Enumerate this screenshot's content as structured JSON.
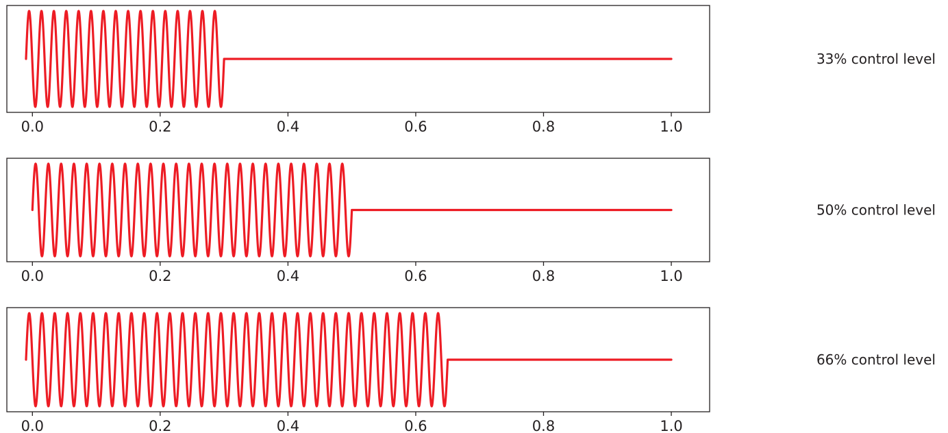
{
  "chart_data": [
    {
      "type": "line",
      "label": "33% control level",
      "control_fraction": 0.33,
      "cutoff_x": 0.3,
      "cycles": 16,
      "xlim": [
        -0.04,
        1.06
      ],
      "xticks": [
        0.0,
        0.2,
        0.4,
        0.6,
        0.8,
        1.0
      ],
      "xtick_labels": [
        "0.0",
        "0.2",
        "0.4",
        "0.6",
        "0.8",
        "1.0"
      ],
      "series": [
        {
          "color": "#ed1c24",
          "segments": [
            {
              "form": "sine",
              "x_start": -0.01,
              "x_end": 0.3,
              "cycles": 16,
              "amplitude": 1.0
            },
            {
              "form": "flat",
              "x_start": 0.3,
              "x_end": 1.0,
              "value": 0.0
            }
          ]
        }
      ]
    },
    {
      "type": "line",
      "label": "50% control level",
      "control_fraction": 0.5,
      "cutoff_x": 0.5,
      "cycles": 25,
      "xlim": [
        -0.04,
        1.06
      ],
      "xticks": [
        0.0,
        0.2,
        0.4,
        0.6,
        0.8,
        1.0
      ],
      "xtick_labels": [
        "0.0",
        "0.2",
        "0.4",
        "0.6",
        "0.8",
        "1.0"
      ],
      "series": [
        {
          "color": "#ed1c24",
          "segments": [
            {
              "form": "sine",
              "x_start": 0.0,
              "x_end": 0.5,
              "cycles": 25,
              "amplitude": 1.0
            },
            {
              "form": "flat",
              "x_start": 0.5,
              "x_end": 1.0,
              "value": 0.0
            }
          ]
        }
      ]
    },
    {
      "type": "line",
      "label": "66% control level",
      "control_fraction": 0.66,
      "cutoff_x": 0.65,
      "cycles": 33,
      "xlim": [
        -0.04,
        1.06
      ],
      "xticks": [
        0.0,
        0.2,
        0.4,
        0.6,
        0.8,
        1.0
      ],
      "xtick_labels": [
        "0.0",
        "0.2",
        "0.4",
        "0.6",
        "0.8",
        "1.0"
      ],
      "series": [
        {
          "color": "#ed1c24",
          "segments": [
            {
              "form": "sine",
              "x_start": -0.01,
              "x_end": 0.65,
              "cycles": 33,
              "amplitude": 1.0
            },
            {
              "form": "flat",
              "x_start": 0.65,
              "x_end": 1.0,
              "value": 0.0
            }
          ]
        }
      ]
    }
  ]
}
